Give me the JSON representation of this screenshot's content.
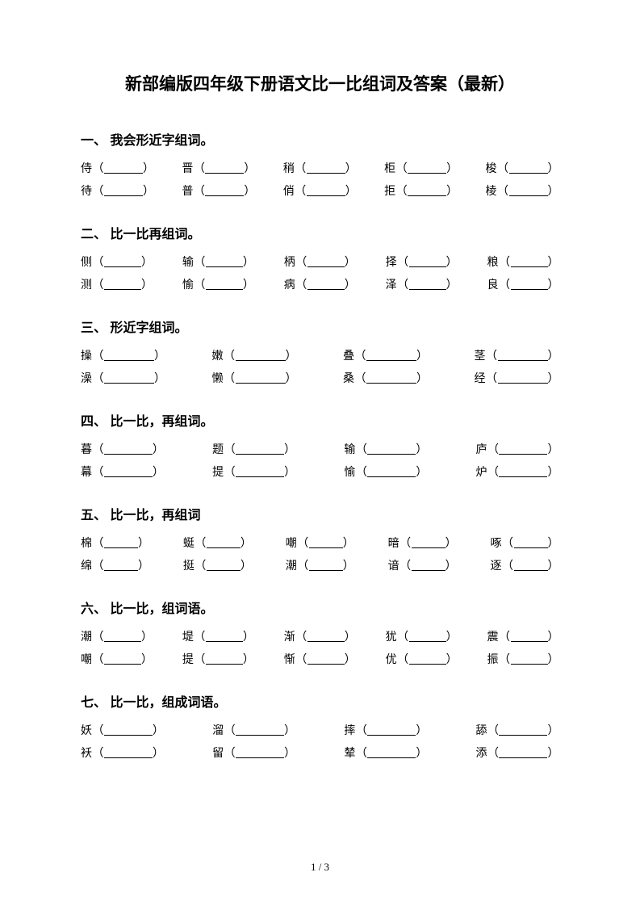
{
  "title": "新部编版四年级下册语文比一比组词及答案（最新）",
  "page_number": "1 / 3",
  "blank_widths": {
    "w1": 48,
    "w2": 46,
    "w3": 62,
    "w4": 60,
    "w5": 42,
    "w6": 46
  },
  "sections": [
    {
      "heading": "一、 我会形近字组词。",
      "rows": [
        {
          "chars": [
            "侍",
            "晋",
            "稍",
            "柜",
            "梭"
          ],
          "w": "w1"
        },
        {
          "chars": [
            "待",
            "普",
            "俏",
            "拒",
            "棱"
          ],
          "w": "w1"
        }
      ]
    },
    {
      "heading": "二、 比一比再组词。",
      "rows": [
        {
          "chars": [
            "侧",
            "输",
            "柄",
            "择",
            "粮"
          ],
          "w": "w2"
        },
        {
          "chars": [
            "测",
            "愉",
            "病",
            "泽",
            "良"
          ],
          "w": "w2"
        }
      ]
    },
    {
      "heading": "三、 形近字组词。",
      "rows": [
        {
          "chars": [
            "操",
            "嫩",
            "叠",
            "茎"
          ],
          "w": "w3"
        },
        {
          "chars": [
            "澡",
            "懒",
            "桑",
            "经"
          ],
          "w": "w3"
        }
      ]
    },
    {
      "heading": "四、 比一比，再组词。",
      "rows": [
        {
          "chars": [
            "暮",
            "题",
            "输",
            "庐"
          ],
          "w": "w4"
        },
        {
          "chars": [
            "幕",
            "提",
            "愉",
            "炉"
          ],
          "w": "w4"
        }
      ]
    },
    {
      "heading": "五、 比一比，再组词",
      "rows": [
        {
          "chars": [
            "棉",
            "蜓",
            "嘲",
            "暗",
            "啄"
          ],
          "w": "w5"
        },
        {
          "chars": [
            "绵",
            "挺",
            "潮",
            "谙",
            "逐"
          ],
          "w": "w5"
        }
      ]
    },
    {
      "heading": "六、 比一比，组词语。",
      "rows": [
        {
          "chars": [
            "潮",
            "堤",
            "渐",
            "犹",
            "震"
          ],
          "w": "w6"
        },
        {
          "chars": [
            "嘲",
            "提",
            "惭",
            "优",
            "振"
          ],
          "w": "w6"
        }
      ]
    },
    {
      "heading": "七、 比一比，组成词语。",
      "rows": [
        {
          "chars": [
            "妖",
            "溜",
            "摔",
            "舔"
          ],
          "w": "w4"
        },
        {
          "chars": [
            "袄",
            "留",
            "辇",
            "添"
          ],
          "w": "w4"
        }
      ]
    }
  ]
}
